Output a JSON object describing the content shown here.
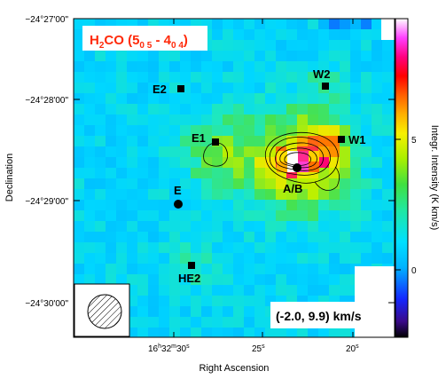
{
  "title": {
    "molecule": "H",
    "sub1": "2",
    "rest": "CO (5",
    "sub2": "0 5",
    "dash": " - 4",
    "sub3": "0 4",
    "close": ")"
  },
  "velocity_range": "(-2.0, 9.9) km/s",
  "axes": {
    "xlabel": "Right Ascension",
    "ylabel": "Declination",
    "colorbar_label": "Integr. Intensity (K km/s)"
  },
  "x_ticks": [
    {
      "h": "16",
      "m": "32",
      "s": "30",
      "label_parts": [
        "16",
        "h",
        "32",
        "m",
        "30",
        "s"
      ]
    },
    {
      "label": "25",
      "sup": "s"
    },
    {
      "label": "20",
      "sup": "s"
    }
  ],
  "y_ticks": [
    "−24°27'00\"",
    "−24°28'00\"",
    "−24°29'00\"",
    "−24°30'00\""
  ],
  "colorbar_ticks": [
    "0",
    "5"
  ],
  "sources": [
    {
      "name": "W2",
      "marker": "square"
    },
    {
      "name": "E2",
      "marker": "square"
    },
    {
      "name": "E1",
      "marker": "square"
    },
    {
      "name": "W1",
      "marker": "square"
    },
    {
      "name": "A/B",
      "marker": "circle"
    },
    {
      "name": "E",
      "marker": "circle"
    },
    {
      "name": "HE2",
      "marker": "square"
    }
  ],
  "colors": {
    "title": "#ff2a0a",
    "background_map": "#00d5ff"
  }
}
